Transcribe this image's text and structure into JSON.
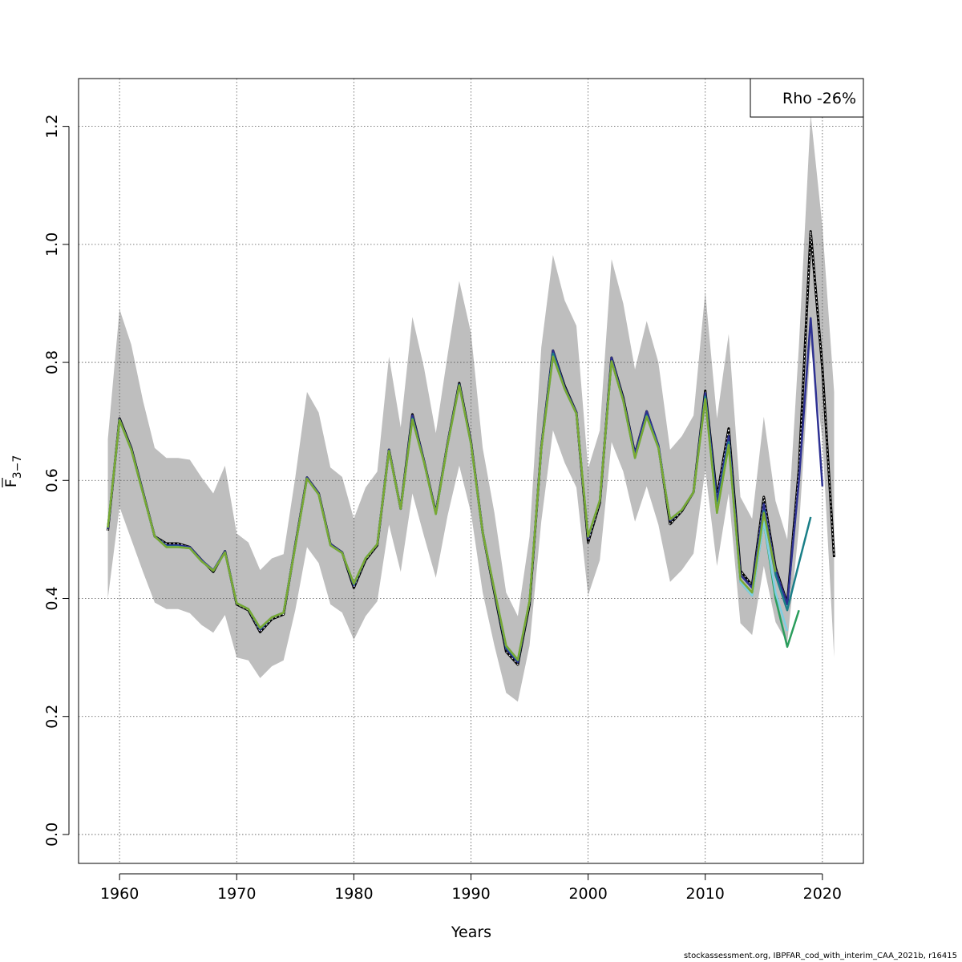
{
  "chart_data": {
    "type": "line",
    "xlabel": "Years",
    "ylabel_main": "F",
    "ylabel_sub": "3−7",
    "legend_text": "Rho -26%",
    "legend_position": "top-right",
    "xlim": [
      1956.5,
      2023.5
    ],
    "ylim": [
      -0.049,
      1.281
    ],
    "x_ticks": [
      1960,
      1970,
      1980,
      1990,
      2000,
      2010,
      2020
    ],
    "y_ticks": [
      0.0,
      0.2,
      0.4,
      0.6,
      0.8,
      1.0,
      1.2
    ],
    "y_tick_labels": [
      "0.0",
      "0.2",
      "0.4",
      "0.6",
      "0.8",
      "1.0",
      "1.2"
    ],
    "grid": true,
    "band_color": "#bebebe",
    "years": [
      1959,
      1960,
      1961,
      1962,
      1963,
      1964,
      1965,
      1966,
      1967,
      1968,
      1969,
      1970,
      1971,
      1972,
      1973,
      1974,
      1975,
      1976,
      1977,
      1978,
      1979,
      1980,
      1981,
      1982,
      1983,
      1984,
      1985,
      1986,
      1987,
      1988,
      1989,
      1990,
      1991,
      1992,
      1993,
      1994,
      1995,
      1996,
      1997,
      1998,
      1999,
      2000,
      2001,
      2002,
      2003,
      2004,
      2005,
      2006,
      2007,
      2008,
      2009,
      2010,
      2011,
      2012,
      2013,
      2014,
      2015,
      2016,
      2017,
      2018,
      2019,
      2020,
      2021
    ],
    "band_lower": [
      0.4,
      0.555,
      0.5,
      0.445,
      0.393,
      0.382,
      0.382,
      0.375,
      0.355,
      0.342,
      0.372,
      0.3,
      0.295,
      0.265,
      0.285,
      0.295,
      0.38,
      0.487,
      0.46,
      0.39,
      0.376,
      0.33,
      0.37,
      0.395,
      0.525,
      0.445,
      0.578,
      0.505,
      0.435,
      0.54,
      0.625,
      0.545,
      0.41,
      0.32,
      0.24,
      0.225,
      0.32,
      0.53,
      0.685,
      0.63,
      0.588,
      0.405,
      0.465,
      0.665,
      0.615,
      0.53,
      0.59,
      0.525,
      0.428,
      0.448,
      0.476,
      0.618,
      0.455,
      0.578,
      0.358,
      0.338,
      0.455,
      0.36,
      0.325,
      0.52,
      0.83,
      0.67,
      0.3
    ],
    "band_upper": [
      0.67,
      0.89,
      0.83,
      0.735,
      0.655,
      0.638,
      0.638,
      0.635,
      0.605,
      0.578,
      0.625,
      0.51,
      0.495,
      0.448,
      0.468,
      0.475,
      0.605,
      0.75,
      0.715,
      0.622,
      0.606,
      0.535,
      0.588,
      0.615,
      0.81,
      0.69,
      0.877,
      0.79,
      0.68,
      0.812,
      0.938,
      0.85,
      0.655,
      0.545,
      0.41,
      0.37,
      0.505,
      0.825,
      0.982,
      0.905,
      0.862,
      0.62,
      0.685,
      0.975,
      0.9,
      0.788,
      0.87,
      0.8,
      0.652,
      0.675,
      0.71,
      0.92,
      0.705,
      0.848,
      0.572,
      0.535,
      0.708,
      0.565,
      0.5,
      0.83,
      1.22,
      1.03,
      0.75
    ],
    "series": [
      {
        "color": "#000000",
        "dashed_overlay": true,
        "x_start": 1959,
        "values": [
          0.515,
          0.705,
          0.655,
          0.58,
          0.505,
          0.493,
          0.493,
          0.487,
          0.465,
          0.445,
          0.48,
          0.39,
          0.38,
          0.343,
          0.365,
          0.373,
          0.49,
          0.605,
          0.578,
          0.492,
          0.478,
          0.418,
          0.465,
          0.49,
          0.652,
          0.552,
          0.712,
          0.632,
          0.545,
          0.662,
          0.765,
          0.665,
          0.512,
          0.41,
          0.31,
          0.288,
          0.39,
          0.655,
          0.82,
          0.76,
          0.715,
          0.495,
          0.562,
          0.808,
          0.74,
          0.645,
          0.717,
          0.658,
          0.526,
          0.548,
          0.58,
          0.752,
          0.572,
          0.688,
          0.447,
          0.422,
          0.572,
          0.452,
          0.392,
          0.62,
          1.022,
          0.79,
          0.47
        ]
      },
      {
        "color": "#2e3192",
        "x_start": 1959,
        "values": [
          0.518,
          0.703,
          0.654,
          0.58,
          0.505,
          0.49,
          0.49,
          0.487,
          0.465,
          0.448,
          0.48,
          0.392,
          0.382,
          0.347,
          0.368,
          0.376,
          0.49,
          0.605,
          0.578,
          0.492,
          0.478,
          0.422,
          0.468,
          0.492,
          0.652,
          0.552,
          0.71,
          0.632,
          0.545,
          0.662,
          0.763,
          0.664,
          0.513,
          0.413,
          0.315,
          0.292,
          0.395,
          0.655,
          0.82,
          0.758,
          0.715,
          0.502,
          0.566,
          0.808,
          0.738,
          0.645,
          0.717,
          0.66,
          0.532,
          0.55,
          0.58,
          0.748,
          0.565,
          0.675,
          0.44,
          0.418,
          0.56,
          0.448,
          0.39,
          0.6,
          0.875,
          0.59
        ]
      },
      {
        "color": "#1a7f88",
        "x_start": 1959,
        "values": [
          0.52,
          0.702,
          0.652,
          0.578,
          0.505,
          0.488,
          0.488,
          0.485,
          0.463,
          0.447,
          0.478,
          0.392,
          0.382,
          0.349,
          0.368,
          0.376,
          0.488,
          0.603,
          0.576,
          0.49,
          0.477,
          0.424,
          0.468,
          0.492,
          0.65,
          0.552,
          0.705,
          0.63,
          0.543,
          0.66,
          0.762,
          0.662,
          0.512,
          0.414,
          0.318,
          0.295,
          0.396,
          0.653,
          0.815,
          0.755,
          0.713,
          0.505,
          0.566,
          0.802,
          0.735,
          0.638,
          0.71,
          0.656,
          0.534,
          0.55,
          0.58,
          0.742,
          0.55,
          0.665,
          0.43,
          0.408,
          0.548,
          0.44,
          0.38,
          0.46,
          0.538
        ]
      },
      {
        "color": "#2a9d5c",
        "x_start": 1959,
        "values": [
          0.52,
          0.702,
          0.652,
          0.578,
          0.505,
          0.487,
          0.487,
          0.485,
          0.463,
          0.447,
          0.478,
          0.392,
          0.382,
          0.35,
          0.368,
          0.376,
          0.488,
          0.603,
          0.576,
          0.49,
          0.477,
          0.425,
          0.468,
          0.492,
          0.65,
          0.552,
          0.703,
          0.63,
          0.543,
          0.66,
          0.761,
          0.662,
          0.512,
          0.415,
          0.32,
          0.296,
          0.396,
          0.653,
          0.81,
          0.755,
          0.713,
          0.505,
          0.566,
          0.802,
          0.735,
          0.638,
          0.708,
          0.655,
          0.534,
          0.55,
          0.58,
          0.738,
          0.545,
          0.66,
          0.428,
          0.405,
          0.53,
          0.4,
          0.318,
          0.38
        ]
      },
      {
        "color": "#7fcfe3",
        "x_start": 1959,
        "values": [
          0.52,
          0.702,
          0.652,
          0.578,
          0.505,
          0.487,
          0.487,
          0.485,
          0.463,
          0.447,
          0.478,
          0.392,
          0.382,
          0.35,
          0.368,
          0.376,
          0.488,
          0.603,
          0.576,
          0.49,
          0.477,
          0.425,
          0.468,
          0.492,
          0.65,
          0.552,
          0.703,
          0.63,
          0.543,
          0.66,
          0.761,
          0.662,
          0.512,
          0.415,
          0.32,
          0.296,
          0.396,
          0.653,
          0.81,
          0.755,
          0.713,
          0.505,
          0.566,
          0.802,
          0.735,
          0.638,
          0.708,
          0.655,
          0.534,
          0.55,
          0.58,
          0.738,
          0.545,
          0.66,
          0.428,
          0.405,
          0.53,
          0.41,
          0.345
        ]
      },
      {
        "color": "#7aa832",
        "x_start": 1959,
        "values": [
          0.52,
          0.702,
          0.652,
          0.578,
          0.505,
          0.487,
          0.487,
          0.485,
          0.463,
          0.447,
          0.478,
          0.392,
          0.382,
          0.35,
          0.368,
          0.376,
          0.488,
          0.603,
          0.576,
          0.49,
          0.477,
          0.425,
          0.468,
          0.492,
          0.65,
          0.552,
          0.703,
          0.63,
          0.543,
          0.66,
          0.761,
          0.662,
          0.512,
          0.415,
          0.32,
          0.296,
          0.396,
          0.653,
          0.81,
          0.755,
          0.713,
          0.505,
          0.566,
          0.802,
          0.735,
          0.638,
          0.708,
          0.655,
          0.534,
          0.55,
          0.58,
          0.738,
          0.545,
          0.66,
          0.432,
          0.41,
          0.545,
          0.445
        ]
      }
    ]
  },
  "footer_text": "stockassessment.org, IBPFAR_cod_with_interim_CAA_2021b, r16415"
}
